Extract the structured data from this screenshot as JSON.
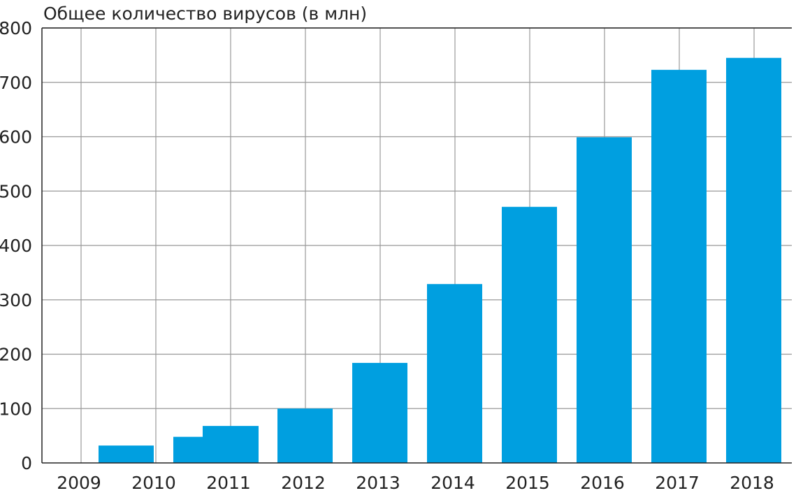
{
  "chart_data": {
    "type": "bar",
    "title": "Общее количество вирусов (в млн)",
    "xlabel": "",
    "ylabel": "",
    "categories": [
      "2009",
      "2010",
      "2011",
      "2012",
      "2013",
      "2014",
      "2015",
      "2016",
      "2017",
      "2018"
    ],
    "values": [
      0,
      32,
      68,
      100,
      184,
      329,
      471,
      599,
      723,
      745
    ],
    "extra_bars": [
      {
        "category": "2011",
        "value": 48
      }
    ],
    "ylim": [
      0,
      800
    ],
    "yticks": [
      0,
      100,
      200,
      300,
      400,
      500,
      600,
      700,
      800
    ],
    "grid": true,
    "bar_color": "#009fe0",
    "grid_color": "#999999"
  }
}
